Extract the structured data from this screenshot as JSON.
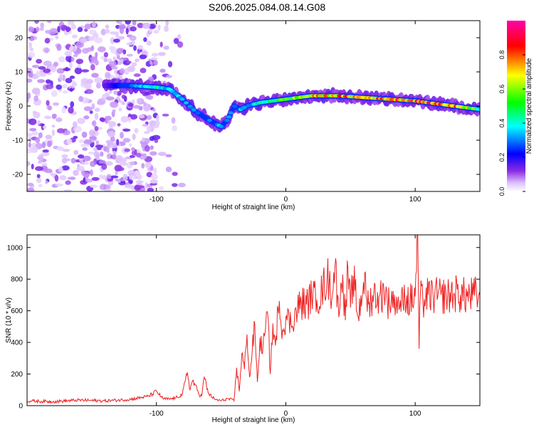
{
  "title": "S206.2025.084.08.14.G08",
  "chart_data": [
    {
      "type": "heatmap",
      "xlabel": "Height of straight line (km)",
      "ylabel": "Frequency (Hz)",
      "xlim": [
        -200,
        150
      ],
      "ylim": [
        -25,
        25
      ],
      "xticks": [
        -100,
        0,
        100
      ],
      "yticks": [
        -20,
        -10,
        0,
        10,
        20
      ],
      "colorbar": {
        "label": "Normalized spectral amplitude",
        "range": [
          0,
          1
        ],
        "ticks": [
          0.0,
          0.2,
          0.4,
          0.6,
          0.8
        ],
        "colormap": [
          "#ffffff",
          "#ddc0ff",
          "#8a2be2",
          "#0000ff",
          "#00ffff",
          "#00ff00",
          "#ffff00",
          "#ff0000",
          "#ff00aa"
        ]
      },
      "ridge": {
        "x": [
          -140,
          -120,
          -100,
          -90,
          -80,
          -70,
          -60,
          -50,
          -45,
          -40,
          -35,
          -30,
          -20,
          -10,
          0,
          20,
          40,
          60,
          80,
          100,
          120,
          140,
          150
        ],
        "y": [
          6,
          6,
          5.5,
          5,
          2,
          -1.5,
          -4,
          -6,
          -4,
          0,
          -1,
          0,
          1,
          1.5,
          2,
          3,
          3,
          2.5,
          2,
          1.5,
          0.5,
          -0.5,
          -1
        ],
        "amplitude": [
          0.15,
          0.3,
          0.45,
          0.4,
          0.35,
          0.3,
          0.3,
          0.35,
          0.3,
          0.35,
          0.35,
          0.3,
          0.45,
          0.55,
          0.6,
          0.75,
          0.85,
          0.8,
          0.9,
          0.9,
          0.9,
          0.75,
          0.5
        ]
      }
    },
    {
      "type": "line",
      "xlabel": "Height of straight line (km)",
      "ylabel": "SNR (10 * v/v)",
      "xlim": [
        -200,
        150
      ],
      "ylim": [
        0,
        1080
      ],
      "xticks": [
        -100,
        0,
        100
      ],
      "yticks": [
        0,
        200,
        400,
        600,
        800,
        1000
      ],
      "color": "#ee2222",
      "series": [
        {
          "x": [
            -200,
            -180,
            -160,
            -140,
            -120,
            -106,
            -100,
            -95,
            -90,
            -85,
            -80,
            -76,
            -74,
            -72,
            -70,
            -67,
            -65,
            -63,
            -60,
            -55,
            -50,
            -45,
            -40,
            -38,
            -36,
            -34,
            -32,
            -30,
            -28,
            -26,
            -24,
            -22,
            -20,
            -18,
            -16,
            -14,
            -12,
            -10,
            -8,
            -6,
            -4,
            -2,
            0,
            4,
            8,
            12,
            16,
            20,
            24,
            28,
            32,
            36,
            38,
            40,
            42,
            44,
            46,
            48,
            50,
            52,
            56,
            60,
            64,
            68,
            72,
            76,
            80,
            84,
            88,
            92,
            96,
            100,
            102,
            103,
            104,
            106,
            110,
            115,
            120,
            125,
            130,
            135,
            140,
            145,
            150
          ],
          "y": [
            30,
            25,
            35,
            30,
            40,
            60,
            90,
            45,
            40,
            50,
            70,
            210,
            100,
            160,
            130,
            70,
            60,
            180,
            80,
            40,
            30,
            45,
            30,
            240,
            90,
            330,
            230,
            450,
            180,
            340,
            520,
            150,
            430,
            330,
            460,
            580,
            200,
            520,
            380,
            610,
            540,
            470,
            560,
            520,
            600,
            650,
            640,
            690,
            670,
            720,
            820,
            700,
            880,
            700,
            640,
            830,
            540,
            870,
            620,
            820,
            560,
            780,
            640,
            710,
            690,
            720,
            640,
            700,
            620,
            680,
            660,
            690,
            1080,
            360,
            700,
            650,
            700,
            690,
            700,
            690,
            710,
            700,
            690,
            700,
            700
          ]
        }
      ]
    }
  ]
}
